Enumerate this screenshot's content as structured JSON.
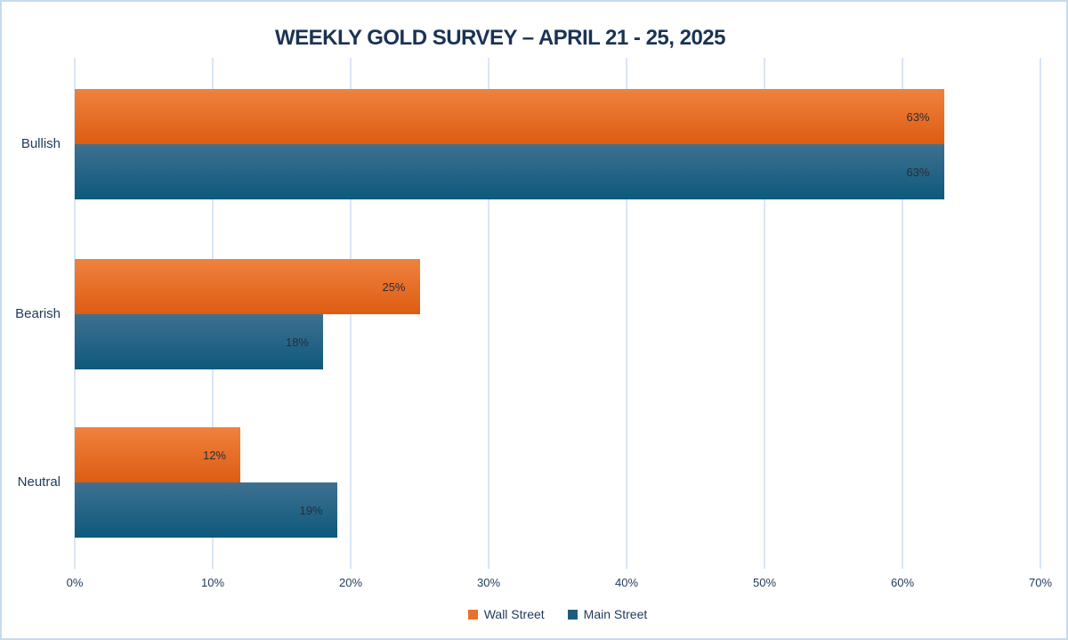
{
  "title": "WEEKLY GOLD SURVEY – APRIL 21 - 25, 2025",
  "colors": {
    "background": "#ffffff",
    "frame_border": "#c7dbef",
    "gridline": "#d9e6f5",
    "title_text": "#1b3353",
    "axis_text": "#1e3a5a",
    "data_label_text": "#272e37"
  },
  "chart_data": {
    "type": "bar",
    "orientation": "horizontal",
    "title": "WEEKLY GOLD SURVEY – APRIL 21 - 25, 2025",
    "categories": [
      "Bullish",
      "Bearish",
      "Neutral"
    ],
    "series": [
      {
        "name": "Wall Street",
        "values": [
          63,
          25,
          12
        ],
        "color_top": "#f0823f",
        "color_bottom": "#dd5c12",
        "legend_color": "#e8702f"
      },
      {
        "name": "Main Street",
        "values": [
          63,
          18,
          19
        ],
        "color_top": "#3f7090",
        "color_bottom": "#0d597c",
        "legend_color": "#1d5c80"
      }
    ],
    "value_suffix": "%",
    "data_labels": [
      "63%",
      "25%",
      "12%",
      "63%",
      "18%",
      "19%"
    ],
    "xlim": [
      0,
      70
    ],
    "x_ticks": [
      "0%",
      "10%",
      "20%",
      "30%",
      "40%",
      "50%",
      "60%",
      "70%"
    ],
    "grid": true,
    "legend_position": "bottom"
  }
}
